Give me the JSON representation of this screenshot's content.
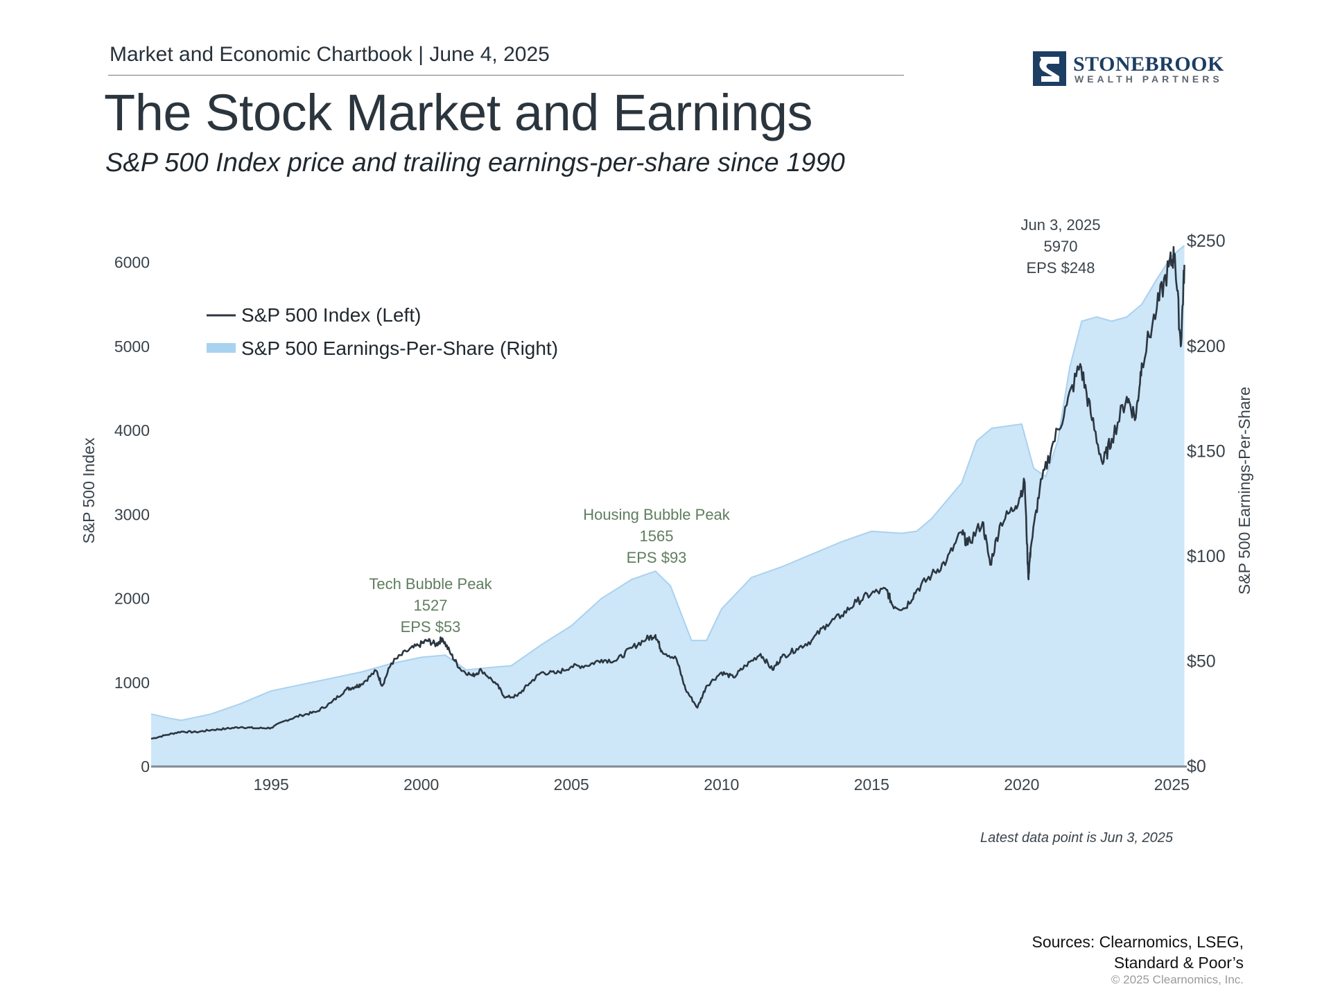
{
  "header": {
    "meta": "Market and Economic Chartbook | June 4, 2025",
    "title": "The Stock Market and Earnings",
    "subtitle": "S&P 500 Index price and trailing earnings-per-share since 1990"
  },
  "logo": {
    "name": "STONEBROOK",
    "tagline": "WEALTH PARTNERS",
    "color": "#1d3e63"
  },
  "colors": {
    "price_line": "#2b3640",
    "eps_fill": "#cde6f8",
    "eps_edge": "#a9d2f0",
    "annotation_green": "#5f7d5f",
    "text": "#3a434b"
  },
  "chart_data": {
    "type": "line",
    "x_axis": {
      "range": [
        1991.0,
        2025.5
      ],
      "ticks": [
        1995,
        2000,
        2005,
        2010,
        2015,
        2020,
        2025
      ]
    },
    "y_left": {
      "label": "S&P 500 Index",
      "range": [
        0,
        6400
      ],
      "ticks": [
        0,
        1000,
        2000,
        3000,
        4000,
        5000,
        6000
      ]
    },
    "y_right": {
      "label": "S&P 500 Earnings-Per-Share",
      "range": [
        0,
        256
      ],
      "ticks": [
        "$0",
        "$50",
        "$100",
        "$150",
        "$200",
        "$250"
      ],
      "tick_values": [
        0,
        50,
        100,
        150,
        200,
        250
      ]
    },
    "legend": {
      "position": "top-left",
      "items": [
        "S&P 500 Index (Left)",
        "S&P 500 Earnings-Per-Share (Right)"
      ]
    },
    "series": [
      {
        "name": "S&P 500 Index (Left)",
        "axis": "left",
        "style": "line",
        "points": [
          [
            1991.0,
            330
          ],
          [
            1991.5,
            375
          ],
          [
            1992.0,
            415
          ],
          [
            1992.5,
            410
          ],
          [
            1993.0,
            435
          ],
          [
            1993.5,
            450
          ],
          [
            1994.0,
            470
          ],
          [
            1994.5,
            455
          ],
          [
            1995.0,
            460
          ],
          [
            1995.5,
            550
          ],
          [
            1996.0,
            610
          ],
          [
            1996.5,
            650
          ],
          [
            1997.0,
            760
          ],
          [
            1997.5,
            920
          ],
          [
            1997.8,
            950
          ],
          [
            1998.0,
            980
          ],
          [
            1998.5,
            1140
          ],
          [
            1998.7,
            960
          ],
          [
            1999.0,
            1230
          ],
          [
            1999.5,
            1370
          ],
          [
            1999.9,
            1440
          ],
          [
            2000.2,
            1500
          ],
          [
            2000.5,
            1450
          ],
          [
            2000.7,
            1527
          ],
          [
            2001.0,
            1330
          ],
          [
            2001.3,
            1160
          ],
          [
            2001.7,
            1080
          ],
          [
            2002.0,
            1150
          ],
          [
            2002.5,
            980
          ],
          [
            2002.8,
            820
          ],
          [
            2003.2,
            840
          ],
          [
            2003.6,
            990
          ],
          [
            2004.0,
            1120
          ],
          [
            2004.5,
            1110
          ],
          [
            2005.0,
            1190
          ],
          [
            2005.5,
            1200
          ],
          [
            2006.0,
            1270
          ],
          [
            2006.5,
            1260
          ],
          [
            2007.0,
            1410
          ],
          [
            2007.5,
            1520
          ],
          [
            2007.8,
            1565
          ],
          [
            2008.0,
            1380
          ],
          [
            2008.5,
            1280
          ],
          [
            2008.8,
            920
          ],
          [
            2009.2,
            700
          ],
          [
            2009.5,
            960
          ],
          [
            2010.0,
            1120
          ],
          [
            2010.4,
            1060
          ],
          [
            2010.8,
            1200
          ],
          [
            2011.3,
            1340
          ],
          [
            2011.7,
            1150
          ],
          [
            2012.0,
            1300
          ],
          [
            2012.5,
            1400
          ],
          [
            2013.0,
            1500
          ],
          [
            2013.5,
            1690
          ],
          [
            2014.0,
            1800
          ],
          [
            2014.5,
            1960
          ],
          [
            2015.0,
            2060
          ],
          [
            2015.5,
            2100
          ],
          [
            2015.7,
            1920
          ],
          [
            2016.1,
            1880
          ],
          [
            2016.5,
            2100
          ],
          [
            2017.0,
            2280
          ],
          [
            2017.5,
            2450
          ],
          [
            2018.0,
            2790
          ],
          [
            2018.2,
            2640
          ],
          [
            2018.7,
            2910
          ],
          [
            2018.95,
            2400
          ],
          [
            2019.3,
            2900
          ],
          [
            2019.8,
            3100
          ],
          [
            2020.1,
            3380
          ],
          [
            2020.22,
            2240
          ],
          [
            2020.3,
            2600
          ],
          [
            2020.6,
            3300
          ],
          [
            2021.0,
            3800
          ],
          [
            2021.5,
            4300
          ],
          [
            2021.95,
            4790
          ],
          [
            2022.3,
            4200
          ],
          [
            2022.7,
            3600
          ],
          [
            2023.0,
            3900
          ],
          [
            2023.5,
            4400
          ],
          [
            2023.8,
            4150
          ],
          [
            2024.0,
            4800
          ],
          [
            2024.5,
            5450
          ],
          [
            2024.9,
            5950
          ],
          [
            2025.1,
            6100
          ],
          [
            2025.3,
            5000
          ],
          [
            2025.42,
            5970
          ]
        ]
      },
      {
        "name": "S&P 500 Earnings-Per-Share (Right)",
        "axis": "right",
        "style": "area",
        "points": [
          [
            1991.0,
            25
          ],
          [
            1991.6,
            23
          ],
          [
            1992.0,
            22
          ],
          [
            1992.5,
            23.5
          ],
          [
            1993.0,
            25
          ],
          [
            1994.0,
            30
          ],
          [
            1995.0,
            36
          ],
          [
            1996.0,
            39
          ],
          [
            1997.0,
            42
          ],
          [
            1998.0,
            45
          ],
          [
            1999.0,
            49
          ],
          [
            2000.0,
            52
          ],
          [
            2000.8,
            53
          ],
          [
            2001.5,
            46
          ],
          [
            2002.2,
            47
          ],
          [
            2003.0,
            48
          ],
          [
            2004.0,
            58
          ],
          [
            2005.0,
            67
          ],
          [
            2006.0,
            80
          ],
          [
            2007.0,
            89
          ],
          [
            2007.8,
            93
          ],
          [
            2008.3,
            86
          ],
          [
            2009.0,
            60
          ],
          [
            2009.5,
            60
          ],
          [
            2010.0,
            75
          ],
          [
            2011.0,
            90
          ],
          [
            2012.0,
            95
          ],
          [
            2013.0,
            101
          ],
          [
            2014.0,
            107
          ],
          [
            2015.0,
            112
          ],
          [
            2016.0,
            111
          ],
          [
            2016.5,
            112
          ],
          [
            2017.0,
            118
          ],
          [
            2018.0,
            135
          ],
          [
            2018.5,
            155
          ],
          [
            2019.0,
            161
          ],
          [
            2019.5,
            162
          ],
          [
            2020.0,
            163
          ],
          [
            2020.4,
            142
          ],
          [
            2020.8,
            138
          ],
          [
            2021.2,
            155
          ],
          [
            2021.6,
            190
          ],
          [
            2022.0,
            212
          ],
          [
            2022.5,
            214
          ],
          [
            2023.0,
            212
          ],
          [
            2023.5,
            214
          ],
          [
            2024.0,
            220
          ],
          [
            2024.5,
            232
          ],
          [
            2025.0,
            243
          ],
          [
            2025.42,
            248
          ]
        ]
      }
    ],
    "annotations": [
      {
        "lines": [
          "Tech Bubble Peak",
          "1527",
          "EPS $53"
        ],
        "x": 2000.7,
        "value": 1527
      },
      {
        "lines": [
          "Housing Bubble Peak",
          "1565",
          "EPS $93"
        ],
        "x": 2007.8,
        "value": 1565
      },
      {
        "lines": [
          "Jun 3, 2025",
          "5970",
          "EPS $248"
        ],
        "x": 2025.42,
        "value": 5970
      }
    ]
  },
  "footer": {
    "note": "Latest data point is Jun 3, 2025",
    "sources_line1": "Sources: Clearnomics, LSEG,",
    "sources_line2": "Standard & Poor’s",
    "copyright": "© 2025 Clearnomics, Inc."
  }
}
